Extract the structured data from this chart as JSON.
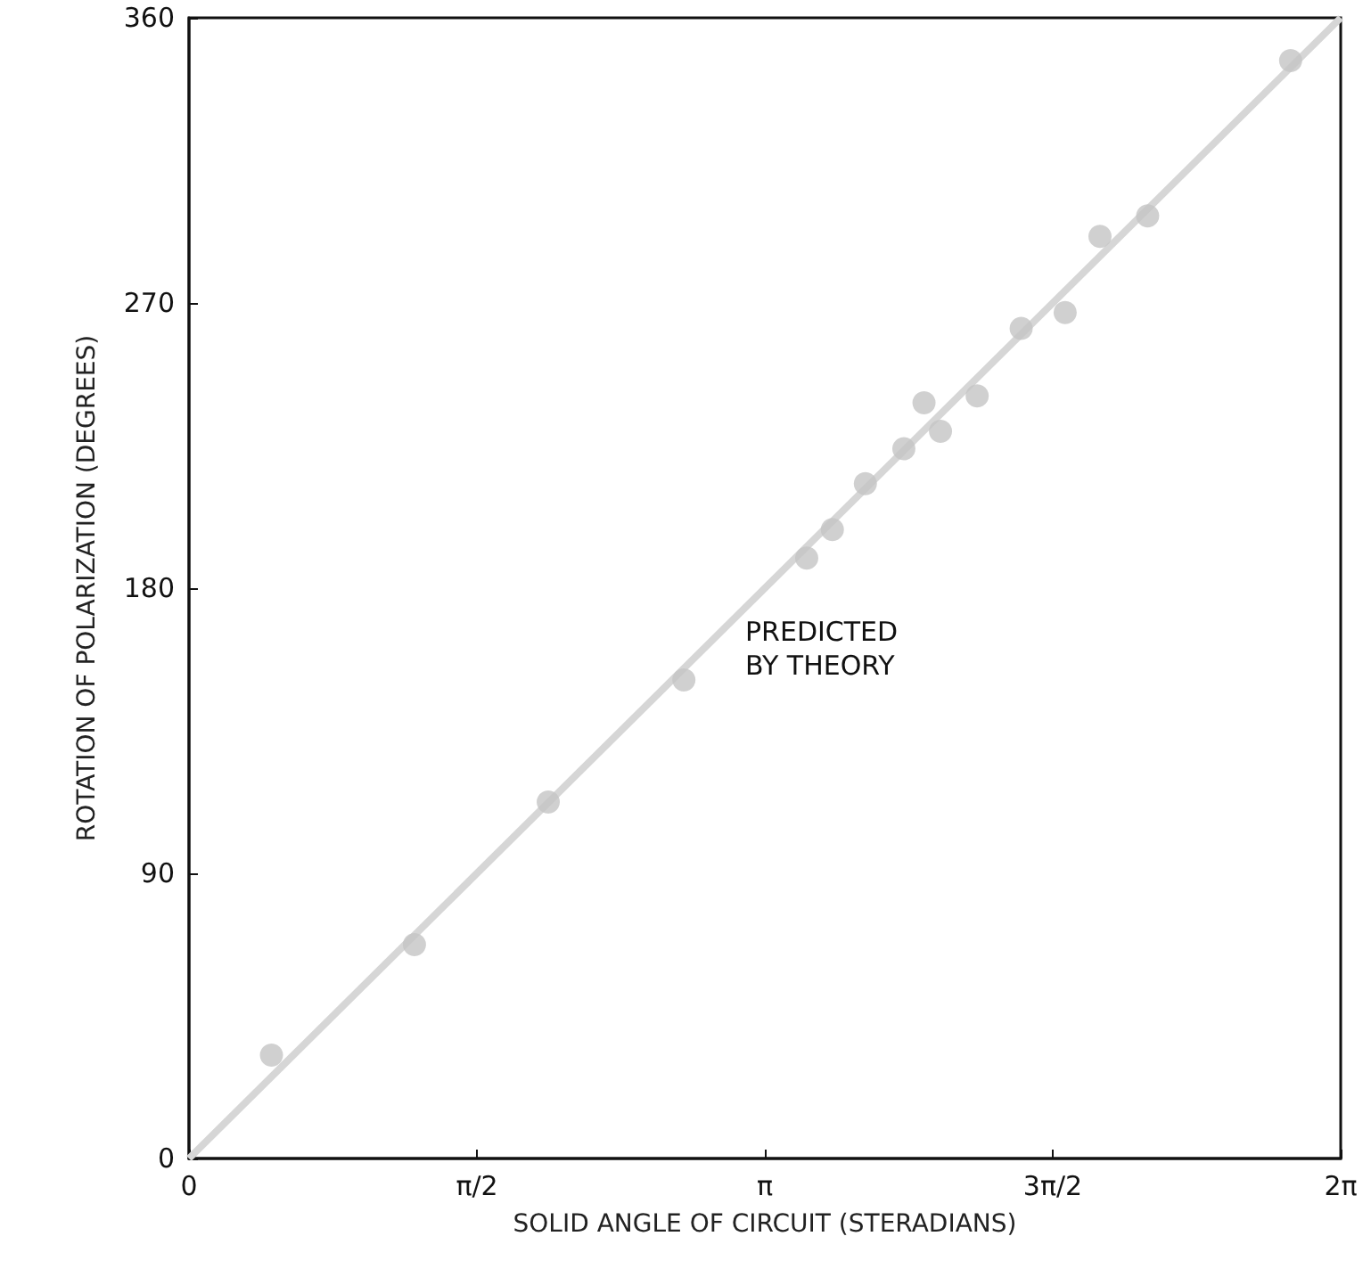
{
  "chart_data": {
    "type": "scatter",
    "xlabel": "SOLID ANGLE OF CIRCUIT (STERADIANS)",
    "ylabel": "ROTATION OF POLARIZATION (DEGREES)",
    "xlim": [
      0,
      6.2832
    ],
    "xticks": [
      0,
      {
        "value": 1.5708,
        "label": "π/2"
      },
      {
        "value": 3.1416,
        "label": "π"
      },
      {
        "value": 4.7124,
        "label": "3π/2"
      },
      {
        "value": 6.2832,
        "label": "2π"
      }
    ],
    "ylim": [
      0,
      360
    ],
    "yticks": [
      0,
      90,
      180,
      270,
      360
    ],
    "grid": false,
    "marker": "circle",
    "series": [
      {
        "color": "#c4c4c4",
        "x": [
          0.45,
          1.23,
          1.96,
          2.7,
          3.37,
          3.51,
          3.69,
          3.9,
          4.01,
          4.1,
          4.3,
          4.54,
          4.78,
          4.97,
          5.23,
          6.01
        ],
        "values": [
          32.6,
          67.5,
          112.5,
          151,
          189.5,
          198.5,
          213,
          224,
          238.5,
          229.5,
          240.7,
          262,
          267,
          291,
          297.5,
          346.5
        ]
      },
      {
        "type": "line",
        "color": "#d6d6d6",
        "marker": "none",
        "x": [
          0,
          6.2832
        ],
        "values": [
          0,
          360
        ]
      }
    ],
    "annotations": [
      "PREDICTED\nBY THEORY"
    ]
  }
}
